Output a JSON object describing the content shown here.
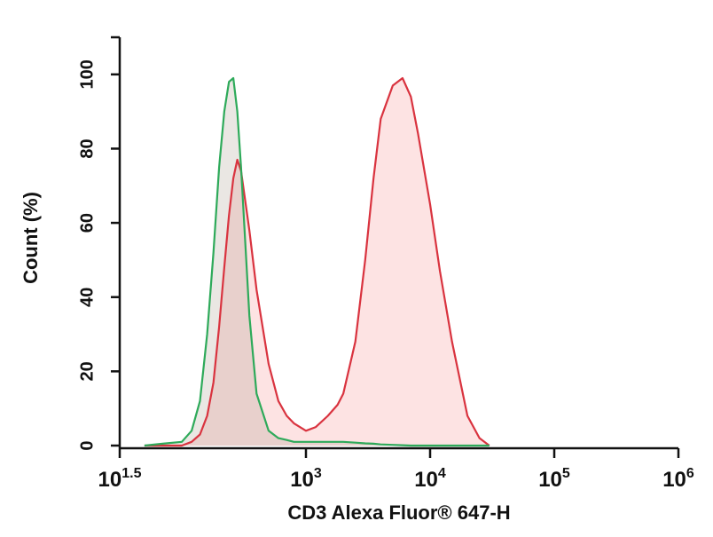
{
  "chart_data": {
    "type": "histogram-overlay",
    "x_label": "CD3 Alexa Fluor® 647-H",
    "y_label": "Count (%)",
    "xlog": true,
    "xlim": [
      31.6227766,
      1000000
    ],
    "ylim": [
      0,
      110
    ],
    "xticks": [
      {
        "value": 31.6227766,
        "label": "10",
        "exponent": "1.5"
      },
      {
        "value": 1000,
        "label": "10",
        "exponent": "3"
      },
      {
        "value": 10000,
        "label": "10",
        "exponent": "4"
      },
      {
        "value": 100000,
        "label": "10",
        "exponent": "5"
      },
      {
        "value": 1000000,
        "label": "10",
        "exponent": "6"
      }
    ],
    "yticks": [
      0,
      20,
      40,
      60,
      80,
      100
    ],
    "x": [
      50,
      70,
      100,
      120,
      140,
      160,
      180,
      200,
      220,
      240,
      260,
      280,
      300,
      350,
      400,
      500,
      600,
      700,
      800,
      1000,
      1200,
      1500,
      1800,
      2000,
      2500,
      3000,
      3500,
      4000,
      5000,
      6000,
      7000,
      8000,
      10000,
      12000,
      15000,
      20000,
      25000,
      30000
    ],
    "series": [
      {
        "color": "#d9333f",
        "fill": "#fde3e3",
        "values": [
          0,
          0,
          0,
          1,
          3,
          8,
          17,
          32,
          48,
          62,
          72,
          77,
          74,
          58,
          42,
          22,
          12,
          8,
          6,
          4,
          5,
          8,
          11,
          14,
          28,
          50,
          72,
          88,
          97,
          99,
          94,
          84,
          65,
          47,
          28,
          8,
          2,
          0
        ]
      },
      {
        "color": "#2eaa5a",
        "fill": "rgba(140,120,100,0.18)",
        "values": [
          0,
          0.5,
          1,
          4,
          12,
          30,
          52,
          75,
          90,
          98,
          99,
          90,
          75,
          35,
          14,
          4,
          2,
          1.5,
          1,
          1,
          1,
          1,
          1,
          1,
          0.8,
          0.6,
          0.5,
          0.3,
          0.2,
          0.1,
          0,
          0,
          0,
          0,
          0,
          0,
          0,
          0
        ]
      }
    ]
  }
}
